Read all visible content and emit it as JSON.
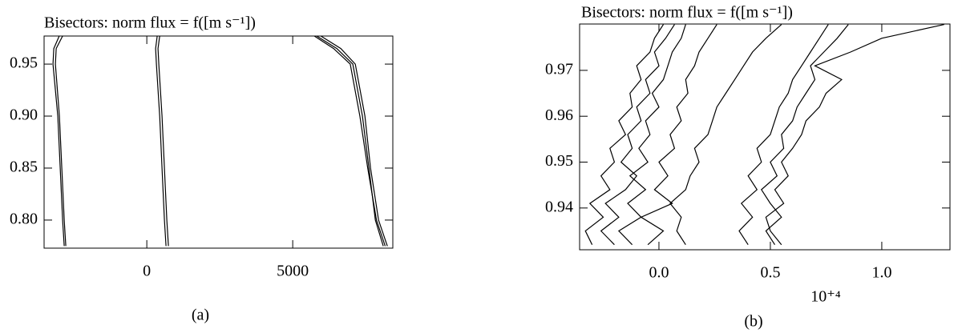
{
  "chart_data": [
    {
      "type": "line",
      "title": "Bisectors: norm flux = f([m s⁻¹])",
      "caption": "(a)",
      "color": "#000000",
      "xlim": [
        -3520,
        8430
      ],
      "xticks": [
        0,
        5000
      ],
      "ylim": [
        0.773,
        0.977
      ],
      "yticks": [
        {
          "value": 0.8,
          "label": "0.80"
        },
        {
          "value": 0.85,
          "label": "0.85"
        },
        {
          "value": 0.9,
          "label": "0.90"
        },
        {
          "value": 0.95,
          "label": "0.95"
        }
      ],
      "y": [
        0.775,
        0.8,
        0.85,
        0.9,
        0.95,
        0.965,
        0.977
      ],
      "series": [
        {
          "values": [
            -2775,
            -2830,
            -2912,
            -2995,
            -3132,
            -3104,
            -2885
          ]
        },
        {
          "values": [
            -2830,
            -2885,
            -2967,
            -3049,
            -3214,
            -3187,
            -3000
          ]
        },
        {
          "values": [
            742,
            687,
            604,
            522,
            412,
            385,
            440
          ]
        },
        {
          "values": [
            659,
            604,
            522,
            440,
            330,
            302,
            357
          ]
        },
        {
          "values": [
            8242,
            7940,
            7665,
            7473,
            7143,
            6648,
            5962
          ]
        },
        {
          "values": [
            8104,
            7830,
            7610,
            7390,
            7060,
            6511,
            5824
          ]
        },
        {
          "values": [
            8170,
            7870,
            7570,
            7300,
            6970,
            6400,
            5740
          ]
        }
      ]
    },
    {
      "type": "line",
      "title": "Bisectors: norm flux = f([m s⁻¹])",
      "caption": "(b)",
      "x_label": "10⁺⁴",
      "color": "#000000",
      "xlim": [
        -0.356,
        1.306
      ],
      "xticks": [
        {
          "value": 0.0,
          "label": "0.0"
        },
        {
          "value": 0.5,
          "label": "0.5"
        },
        {
          "value": 1.0,
          "label": "1.0"
        }
      ],
      "ylim": [
        0.9309,
        0.9801
      ],
      "yticks": [
        0.94,
        0.95,
        0.96,
        0.97
      ],
      "y": [
        0.932,
        0.935,
        0.938,
        0.941,
        0.944,
        0.947,
        0.95,
        0.953,
        0.956,
        0.959,
        0.962,
        0.965,
        0.968,
        0.971,
        0.974,
        0.977,
        0.98
      ],
      "series": [
        {
          "values": [
            -0.3,
            -0.33,
            -0.25,
            -0.31,
            -0.22,
            -0.26,
            -0.2,
            -0.22,
            -0.15,
            -0.18,
            -0.12,
            -0.13,
            -0.08,
            -0.1,
            -0.04,
            -0.02,
            0.02
          ]
        },
        {
          "values": [
            -0.2,
            -0.26,
            -0.18,
            -0.24,
            -0.15,
            -0.1,
            -0.17,
            -0.12,
            -0.14,
            -0.08,
            -0.1,
            -0.04,
            -0.06,
            0.0,
            -0.02,
            0.03,
            0.07
          ]
        },
        {
          "values": [
            -0.12,
            -0.18,
            -0.08,
            -0.14,
            -0.06,
            -0.13,
            -0.05,
            -0.09,
            -0.04,
            -0.06,
            0.0,
            -0.03,
            0.02,
            0.04,
            0.06,
            0.1,
            0.12
          ]
        },
        {
          "values": [
            -0.05,
            0.02,
            -0.08,
            0.06,
            -0.02,
            0.04,
            0.0,
            0.07,
            0.05,
            0.1,
            0.08,
            0.13,
            0.12,
            0.16,
            0.18,
            0.22,
            0.26
          ]
        },
        {
          "values": [
            0.12,
            0.08,
            0.1,
            0.05,
            0.12,
            0.14,
            0.18,
            0.16,
            0.22,
            0.24,
            0.26,
            0.3,
            0.34,
            0.38,
            0.42,
            0.48,
            0.55
          ]
        },
        {
          "values": [
            0.4,
            0.36,
            0.42,
            0.37,
            0.44,
            0.4,
            0.46,
            0.44,
            0.5,
            0.52,
            0.54,
            0.58,
            0.6,
            0.64,
            0.68,
            0.72,
            0.76
          ]
        },
        {
          "values": [
            0.52,
            0.48,
            0.55,
            0.5,
            0.46,
            0.53,
            0.5,
            0.56,
            0.55,
            0.6,
            0.62,
            0.66,
            0.7,
            0.68,
            0.74,
            0.8,
            0.85
          ]
        },
        {
          "values": [
            0.55,
            0.5,
            0.48,
            0.56,
            0.52,
            0.58,
            0.55,
            0.6,
            0.64,
            0.66,
            0.72,
            0.75,
            0.82,
            0.7,
            0.86,
            1.0,
            1.28
          ]
        }
      ]
    }
  ]
}
